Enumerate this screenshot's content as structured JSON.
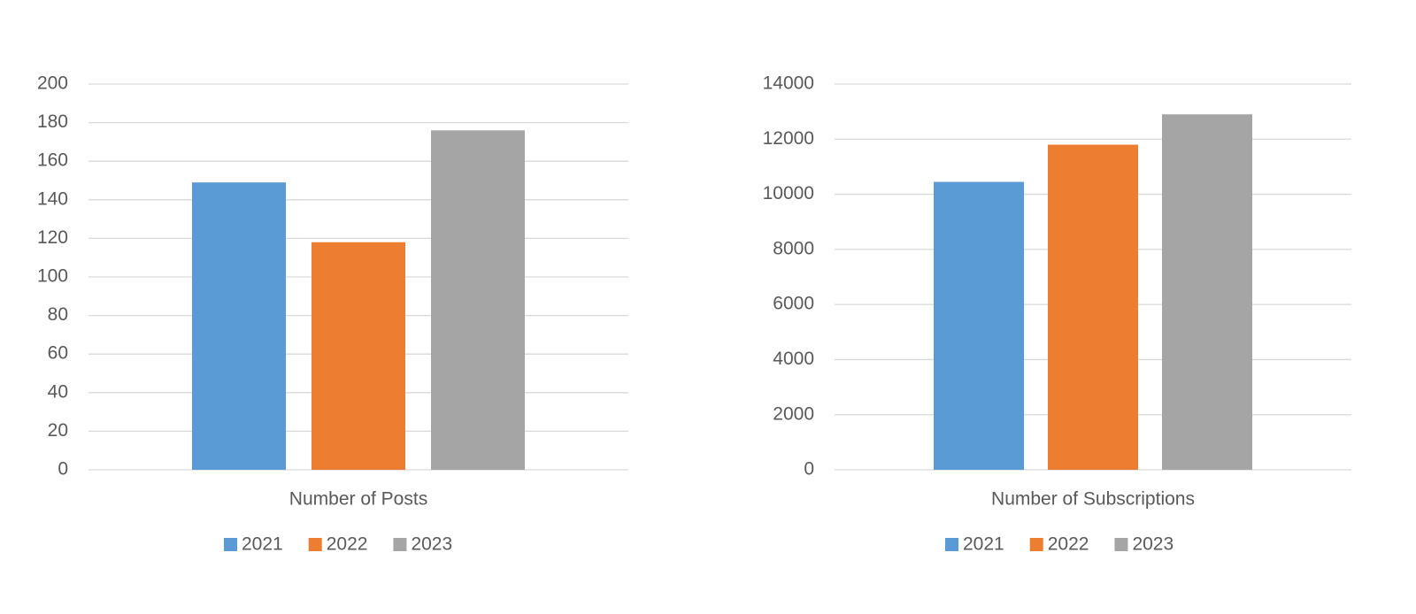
{
  "chart_data": [
    {
      "type": "bar",
      "categories": [
        "Number of Posts"
      ],
      "series": [
        {
          "name": "2021",
          "color": "#5b9bd5",
          "values": [
            149
          ]
        },
        {
          "name": "2022",
          "color": "#ed7d31",
          "values": [
            118
          ]
        },
        {
          "name": "2023",
          "color": "#a5a5a5",
          "values": [
            176
          ]
        }
      ],
      "ylim": [
        0,
        200
      ],
      "yticks": [
        0,
        20,
        40,
        60,
        80,
        100,
        120,
        140,
        160,
        180,
        200
      ],
      "grid": true,
      "legend": "bottom"
    },
    {
      "type": "bar",
      "categories": [
        "Number of Subscriptions"
      ],
      "series": [
        {
          "name": "2021",
          "color": "#5b9bd5",
          "values": [
            10450
          ]
        },
        {
          "name": "2022",
          "color": "#ed7d31",
          "values": [
            11800
          ]
        },
        {
          "name": "2023",
          "color": "#a5a5a5",
          "values": [
            12900
          ]
        }
      ],
      "ylim": [
        0,
        14000
      ],
      "yticks": [
        0,
        2000,
        4000,
        6000,
        8000,
        10000,
        12000,
        14000
      ],
      "grid": true,
      "legend": "bottom"
    }
  ]
}
